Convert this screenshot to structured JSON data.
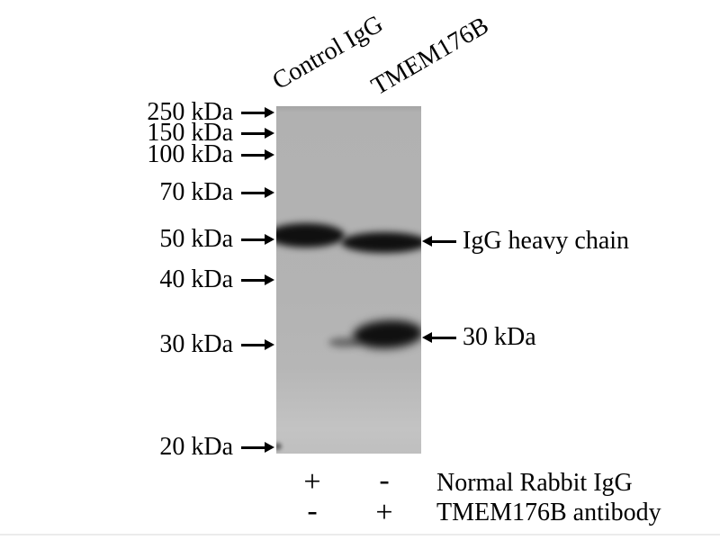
{
  "figure": {
    "type": "western-blot-immunoprecipitation",
    "lanes": [
      {
        "label": "Control IgG"
      },
      {
        "label": "TMEM176B"
      }
    ],
    "markers": [
      "250 kDa",
      "150 kDa",
      "100 kDa",
      "70 kDa",
      "50 kDa",
      "40 kDa",
      "30 kDa",
      "20 kDa"
    ],
    "annotations": [
      {
        "label": "IgG heavy chain"
      },
      {
        "label": "30 kDa"
      }
    ],
    "treatment_rows": [
      {
        "label": "Normal Rabbit IgG",
        "lane1": "+",
        "lane2": "-"
      },
      {
        "label": "TMEM176B antibody",
        "lane1": "-",
        "lane2": "+"
      }
    ],
    "bands": [
      {
        "lane": "Control IgG",
        "position": "~50 kDa",
        "identity": "IgG heavy chain",
        "intensity": "strong"
      },
      {
        "lane": "TMEM176B",
        "position": "~50 kDa",
        "identity": "IgG heavy chain",
        "intensity": "strong"
      },
      {
        "lane": "TMEM176B",
        "position": "~30 kDa",
        "identity": "30 kDa band",
        "intensity": "strong"
      }
    ],
    "colors": {
      "background": "#ffffff",
      "blot_background": "#b3b3b3",
      "band": "#101010",
      "text": "#000000",
      "edge_artifact": "#ebebeb"
    }
  }
}
